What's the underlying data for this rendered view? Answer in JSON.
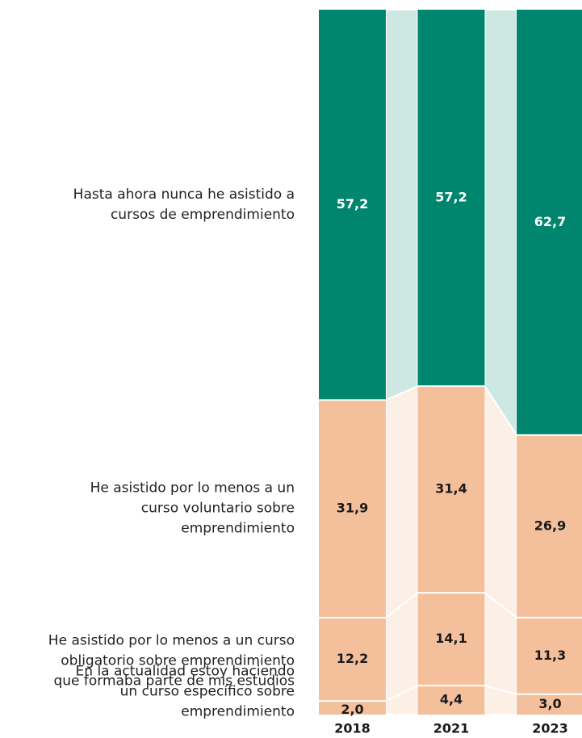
{
  "chart_data": {
    "type": "stacked-bar-100",
    "categories": [
      "2018",
      "2021",
      "2023"
    ],
    "series": [
      {
        "name": "Hasta ahora nunca he asistido a\ncursos de emprendimiento",
        "color": "#00856f",
        "ribbon_color": "#cde7e2",
        "label_color": "#ffffff",
        "values": [
          57.2,
          57.2,
          62.7
        ],
        "value_labels": [
          "57,2",
          "57,2",
          "62,7"
        ]
      },
      {
        "name": "He asistido por lo menos a un\ncurso voluntario sobre\nemprendimiento",
        "color": "#f4c09c",
        "ribbon_color": "#fcefe6",
        "label_color": "#1a1a1a",
        "values": [
          31.9,
          31.4,
          26.9
        ],
        "value_labels": [
          "31,9",
          "31,4",
          "26,9"
        ]
      },
      {
        "name": "He asistido por lo menos a un curso\nobligatorio sobre emprendimiento\nque formaba parte de mis estudios",
        "color": "#f4c09c",
        "ribbon_color": "#fcefe6",
        "label_color": "#1a1a1a",
        "values": [
          12.2,
          14.1,
          11.3
        ],
        "value_labels": [
          "12,2",
          "14,1",
          "11,3"
        ]
      },
      {
        "name": "En la actualidad estoy haciendo\nun curso específico sobre\nemprendimiento",
        "color": "#f4c09c",
        "ribbon_color": "#fcefe6",
        "label_color": "#1a1a1a",
        "values": [
          2.0,
          4.4,
          3.0
        ],
        "value_labels": [
          "2,0",
          "4,4",
          "3,0"
        ]
      }
    ]
  }
}
